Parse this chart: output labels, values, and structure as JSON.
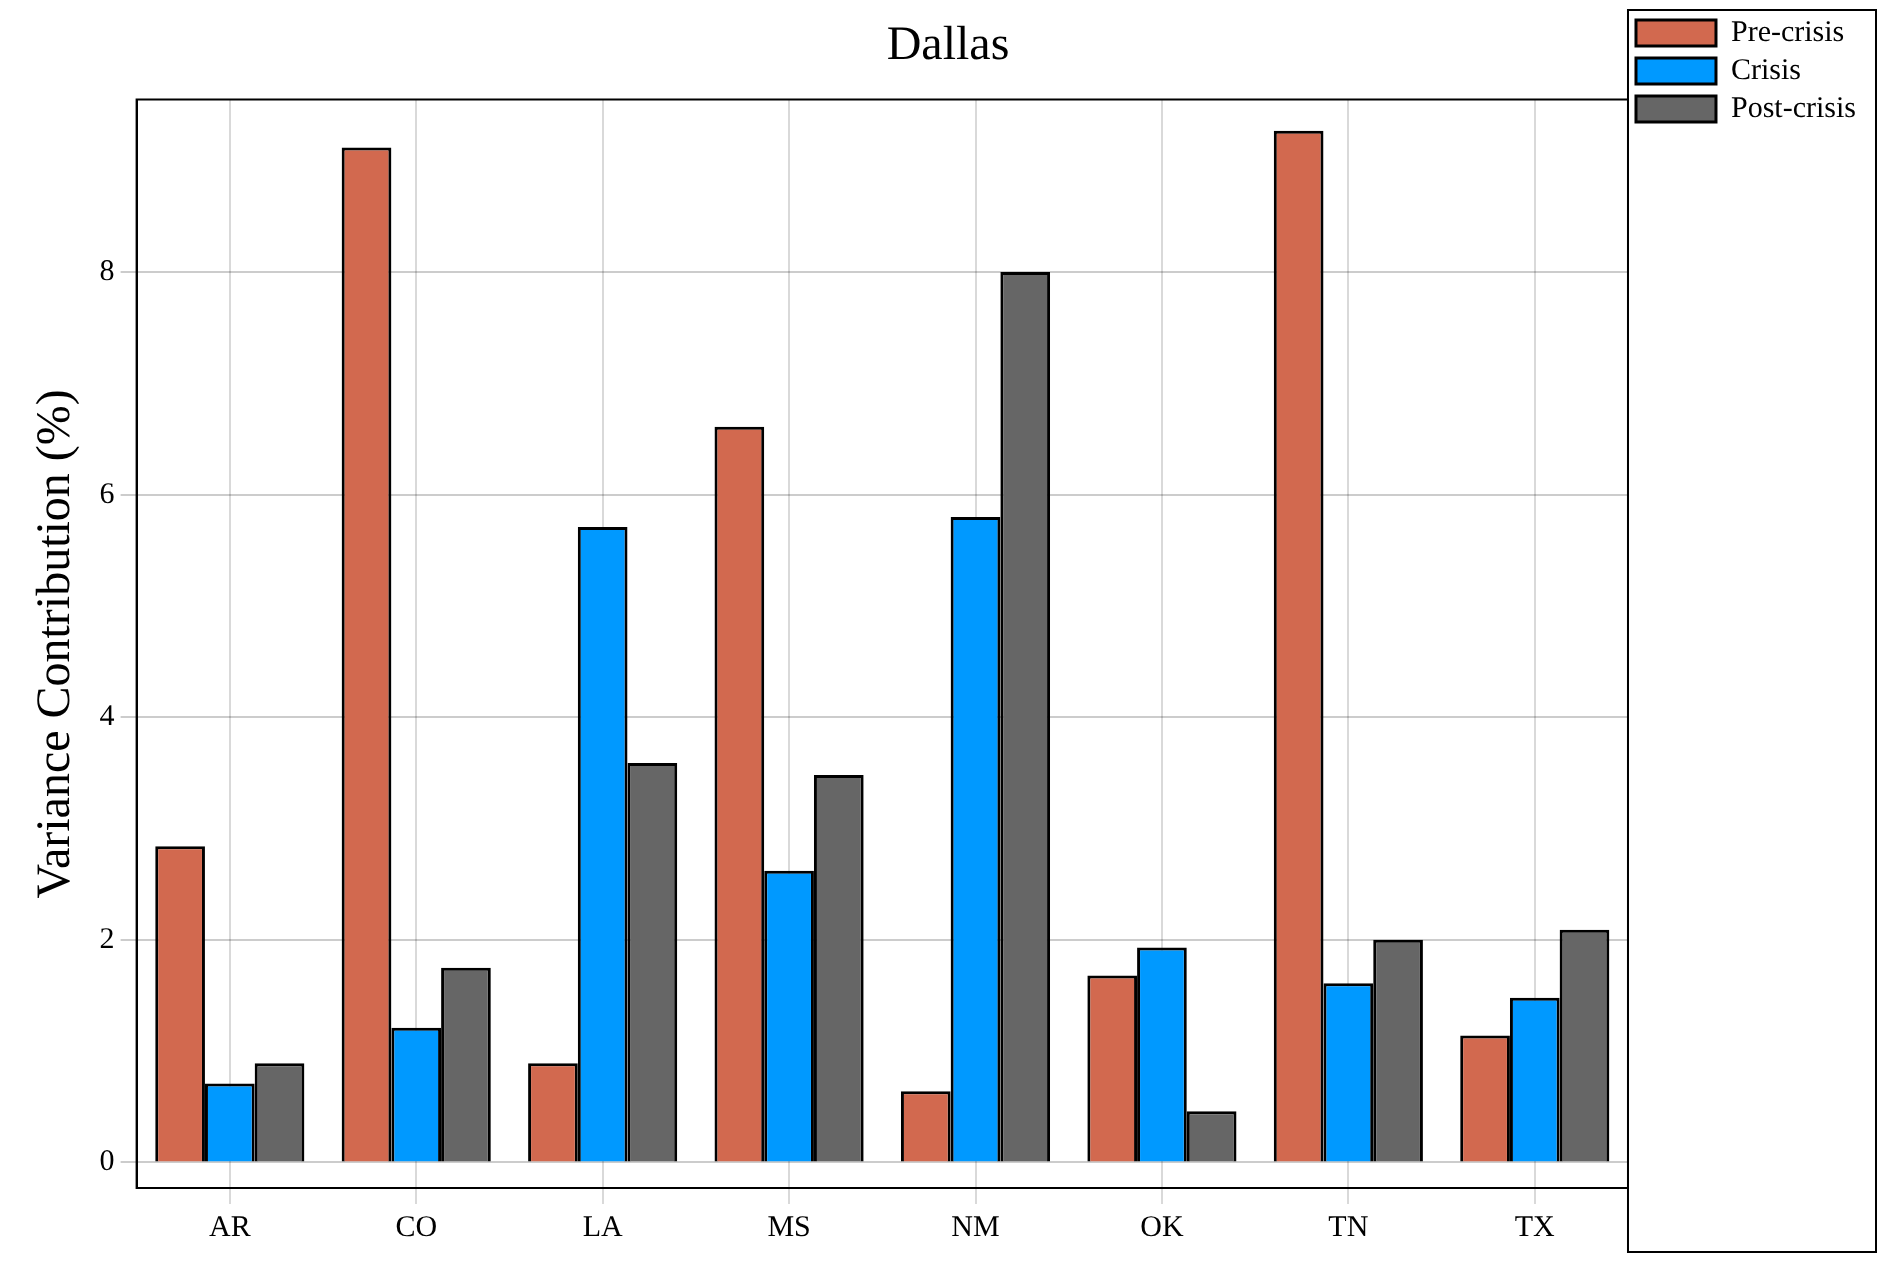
{
  "chart_data": {
    "type": "bar",
    "title": "Dallas",
    "ylabel": "Variance Contribution (%)",
    "categories": [
      "AR",
      "CO",
      "LA",
      "MS",
      "NM",
      "OK",
      "TN",
      "TX"
    ],
    "series": [
      {
        "name": "Pre-crisis",
        "color": "#d2694f",
        "values": [
          2.84,
          9.12,
          0.89,
          6.61,
          0.64,
          1.68,
          9.27,
          1.14
        ]
      },
      {
        "name": "Crisis",
        "color": "#0099ff",
        "values": [
          0.71,
          1.21,
          5.71,
          2.62,
          5.8,
          1.93,
          1.61,
          1.48
        ]
      },
      {
        "name": "Post-crisis",
        "color": "#666666",
        "values": [
          0.89,
          1.75,
          3.59,
          3.48,
          8.0,
          0.46,
          2.0,
          2.09
        ]
      }
    ],
    "ylim": [
      -0.23,
      9.55
    ],
    "yticks": [
      0,
      2,
      4,
      6,
      8
    ],
    "grid": true,
    "legend": "top right"
  }
}
